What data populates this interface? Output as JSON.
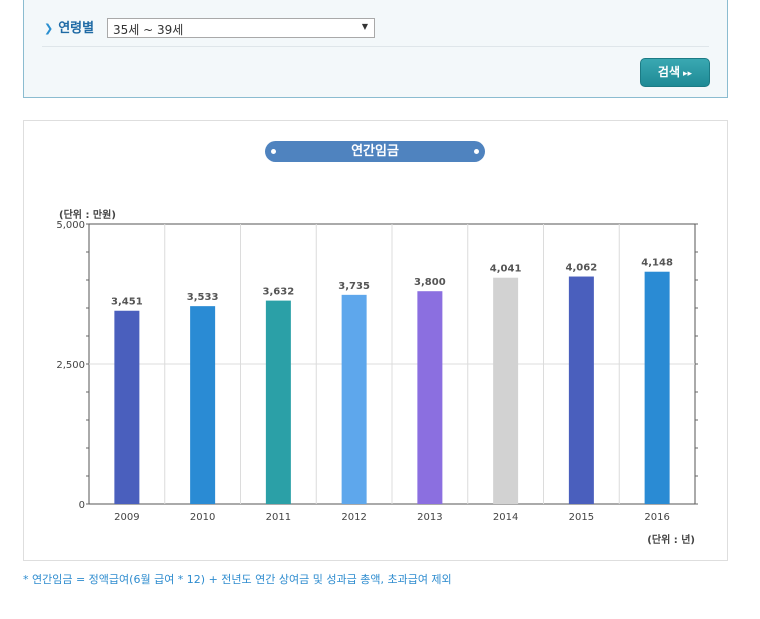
{
  "filter": {
    "label": "연령별",
    "select_value": "35세 ~ 39세",
    "search_label": "검색"
  },
  "chart_data": {
    "type": "bar",
    "title": "연간임금",
    "unit_y": "(단위 : 만원)",
    "unit_x": "(단위 : 년)",
    "categories": [
      "2009",
      "2010",
      "2011",
      "2012",
      "2013",
      "2014",
      "2015",
      "2016"
    ],
    "values": [
      3451,
      3533,
      3632,
      3735,
      3800,
      4041,
      4062,
      4148
    ],
    "value_labels": [
      "3,451",
      "3,533",
      "3,632",
      "3,735",
      "3,800",
      "4,041",
      "4,062",
      "4,148"
    ],
    "colors": [
      "#4a5fbd",
      "#2a8bd4",
      "#2ba0a7",
      "#5ea7ec",
      "#8b6fe0",
      "#d2d2d2",
      "#4a5fbd",
      "#2a8bd4"
    ],
    "yticks": [
      0,
      2500,
      5000
    ],
    "ytick_labels": [
      "0",
      "2,500",
      "5,000"
    ],
    "ylim": [
      0,
      5000
    ],
    "grid": true,
    "legend": "none"
  },
  "footnote": "* 연간임금 = 정액급여(6월 급여 * 12) + 전년도 연간 상여금 및 성과급 총액, 초과급여 제외"
}
